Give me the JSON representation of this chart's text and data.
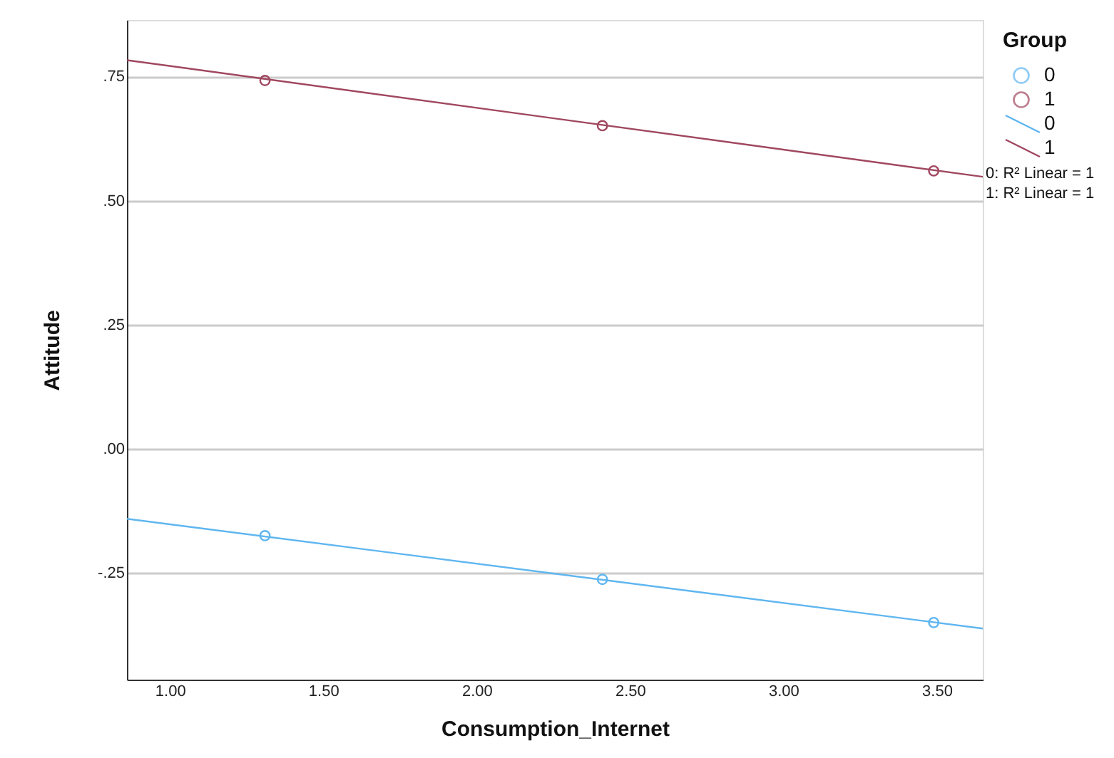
{
  "chart_data": {
    "type": "scatter",
    "xlabel": "Consumption_Internet",
    "ylabel": "Attitude",
    "legend_title": "Group",
    "series": [
      {
        "name": "0",
        "color": "#5fb6f0",
        "x": [
          1.31,
          2.41,
          3.49
        ],
        "values": [
          -0.175,
          -0.263,
          -0.35
        ]
      },
      {
        "name": "1",
        "color": "#a0475f",
        "x": [
          1.31,
          2.41,
          3.49
        ],
        "values": [
          0.742,
          0.651,
          0.56
        ]
      },
      {
        "name": "0",
        "type": "line",
        "marker": "none",
        "color": "#5fb6f0",
        "x": [
          0.86,
          3.65
        ],
        "values": [
          -0.141,
          -0.362
        ]
      },
      {
        "name": "1",
        "type": "line",
        "marker": "none",
        "color": "#a0475f",
        "x": [
          0.86,
          3.65
        ],
        "values": [
          0.783,
          0.548
        ]
      }
    ],
    "annotations": [
      "0: R² Linear = 1",
      "1: R² Linear = 1"
    ],
    "xlim": [
      0.86,
      3.65
    ],
    "xticks": [
      {
        "value": 1,
        "label": "1.00"
      },
      {
        "value": 1.5,
        "label": "1.50"
      },
      {
        "value": 2,
        "label": "2.00"
      },
      {
        "value": 2.5,
        "label": "2.50"
      },
      {
        "value": 3,
        "label": "3.00"
      },
      {
        "value": 3.5,
        "label": "3.50"
      }
    ],
    "ylim": [
      -0.465,
      0.864
    ],
    "yticks": [
      {
        "value": -0.25,
        "label": "-.25"
      },
      {
        "value": 0,
        "label": ".00"
      },
      {
        "value": 0.25,
        "label": ".25"
      },
      {
        "value": 0.5,
        "label": ".50"
      },
      {
        "value": 0.75,
        "label": ".75"
      }
    ],
    "grid": "y",
    "legend": "top right",
    "marker": "circle",
    "line_style": "solid"
  }
}
